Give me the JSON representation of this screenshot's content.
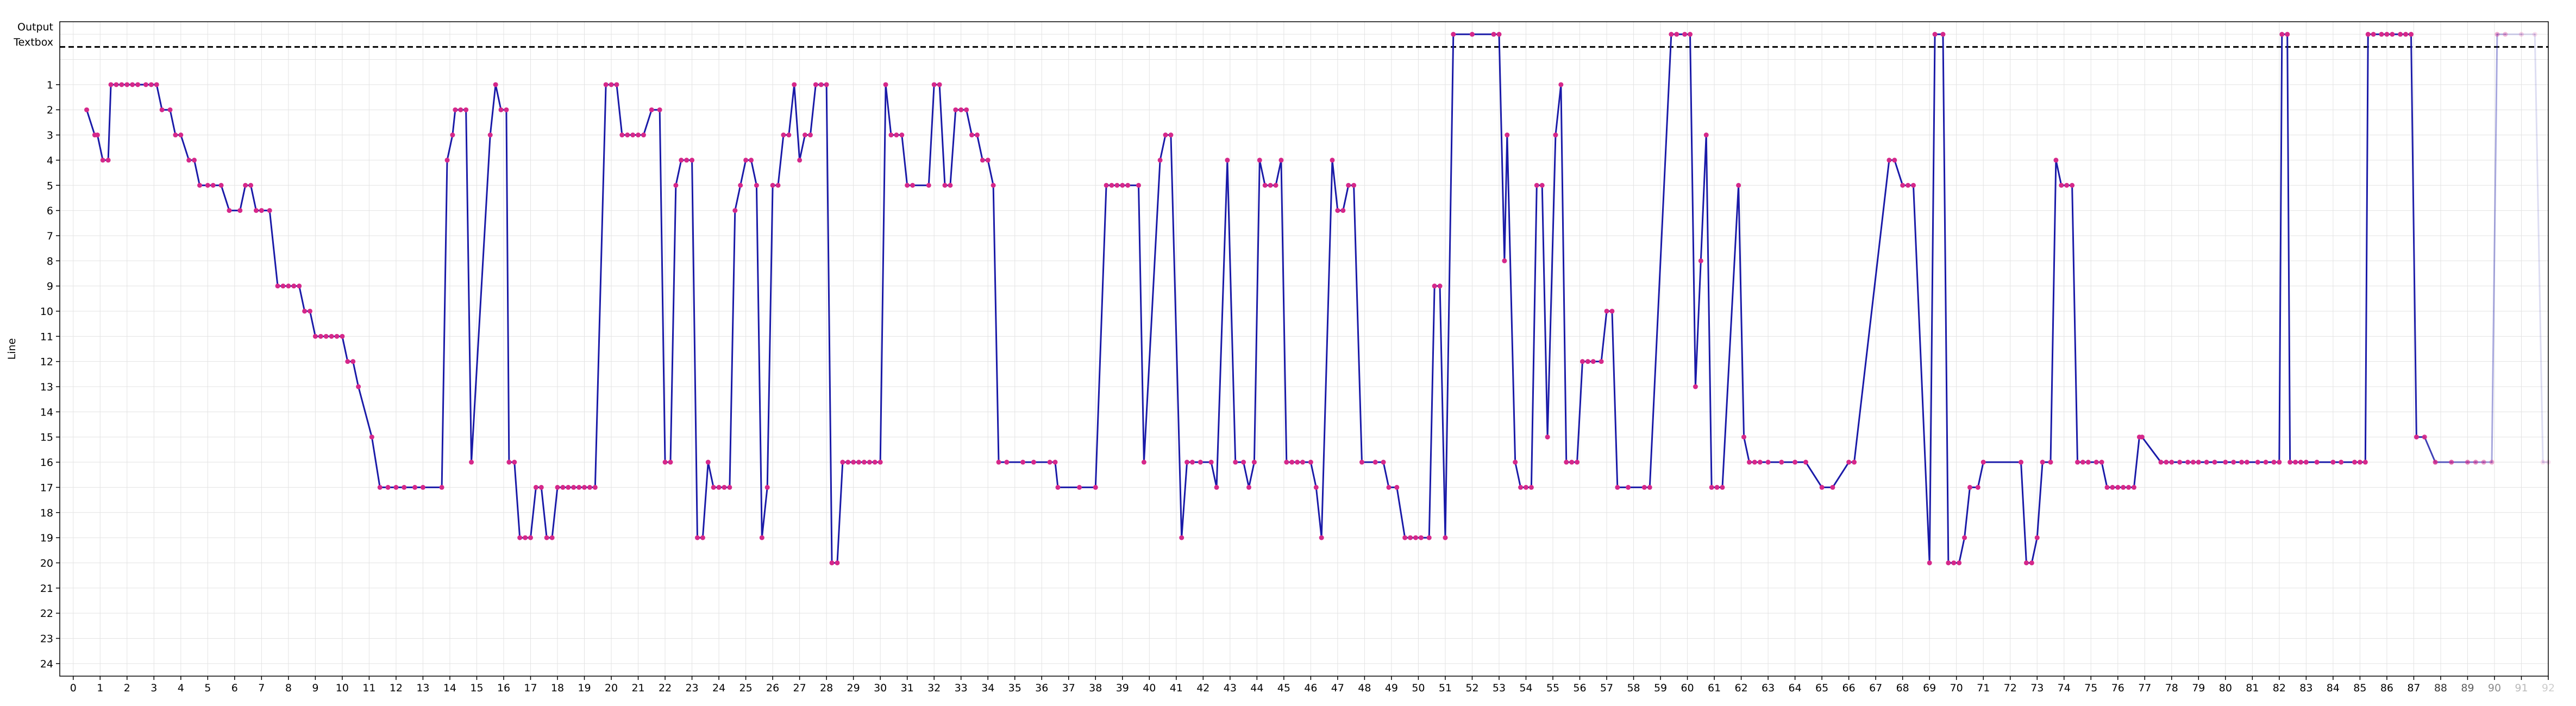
{
  "chart_data": {
    "type": "line",
    "title": "",
    "xlabel": "",
    "ylabel": "Line",
    "special_rows": [
      "Output",
      "Textbox"
    ],
    "xlim": [
      -0.5,
      92
    ],
    "ylim": [
      -1.5,
      24.5
    ],
    "x_ticks": [
      0,
      1,
      2,
      3,
      4,
      5,
      6,
      7,
      8,
      9,
      10,
      11,
      12,
      13,
      14,
      15,
      16,
      17,
      18,
      19,
      20,
      21,
      22,
      23,
      24,
      25,
      26,
      27,
      28,
      29,
      30,
      31,
      32,
      33,
      34,
      35,
      36,
      37,
      38,
      39,
      40,
      41,
      42,
      43,
      44,
      45,
      46,
      47,
      48,
      49,
      50,
      51,
      52,
      53,
      54,
      55,
      56,
      57,
      58,
      59,
      60,
      61,
      62,
      63,
      64,
      65,
      66,
      67,
      68,
      69,
      70,
      71,
      72,
      73,
      74,
      75,
      76,
      77,
      78,
      79,
      80,
      81,
      82,
      83,
      84,
      85,
      86,
      87,
      88,
      89,
      90,
      91,
      92
    ],
    "y_ticks": [
      1,
      2,
      3,
      4,
      5,
      6,
      7,
      8,
      9,
      10,
      11,
      12,
      13,
      14,
      15,
      16,
      17,
      18,
      19,
      20,
      21,
      22,
      23,
      24
    ],
    "dashed_line_y": -0.5,
    "grid": true,
    "fade_start_x": 87,
    "colors": {
      "line": "#1a1aa8",
      "marker": "#d6288a",
      "dashed": "#000000",
      "grid": "#e3e3e3"
    },
    "points": [
      [
        0.5,
        2
      ],
      [
        0.8,
        3
      ],
      [
        0.9,
        3
      ],
      [
        1.1,
        4
      ],
      [
        1.3,
        4
      ],
      [
        1.4,
        1
      ],
      [
        1.6,
        1
      ],
      [
        1.8,
        1
      ],
      [
        2.0,
        1
      ],
      [
        2.2,
        1
      ],
      [
        2.4,
        1
      ],
      [
        2.7,
        1
      ],
      [
        2.9,
        1
      ],
      [
        3.1,
        1
      ],
      [
        3.3,
        2
      ],
      [
        3.6,
        2
      ],
      [
        3.8,
        3
      ],
      [
        4.0,
        3
      ],
      [
        4.3,
        4
      ],
      [
        4.5,
        4
      ],
      [
        4.7,
        5
      ],
      [
        5.0,
        5
      ],
      [
        5.2,
        5
      ],
      [
        5.5,
        5
      ],
      [
        5.8,
        6
      ],
      [
        6.2,
        6
      ],
      [
        6.4,
        5
      ],
      [
        6.6,
        5
      ],
      [
        6.8,
        6
      ],
      [
        7.0,
        6
      ],
      [
        7.3,
        6
      ],
      [
        7.6,
        9
      ],
      [
        7.8,
        9
      ],
      [
        8.0,
        9
      ],
      [
        8.2,
        9
      ],
      [
        8.4,
        9
      ],
      [
        8.6,
        10
      ],
      [
        8.8,
        10
      ],
      [
        9.0,
        11
      ],
      [
        9.2,
        11
      ],
      [
        9.4,
        11
      ],
      [
        9.6,
        11
      ],
      [
        9.8,
        11
      ],
      [
        10.0,
        11
      ],
      [
        10.2,
        12
      ],
      [
        10.4,
        12
      ],
      [
        10.6,
        13
      ],
      [
        11.1,
        15
      ],
      [
        11.4,
        17
      ],
      [
        11.7,
        17
      ],
      [
        12.0,
        17
      ],
      [
        12.3,
        17
      ],
      [
        12.7,
        17
      ],
      [
        13.0,
        17
      ],
      [
        13.7,
        17
      ],
      [
        13.9,
        4
      ],
      [
        14.1,
        3
      ],
      [
        14.2,
        2
      ],
      [
        14.4,
        2
      ],
      [
        14.6,
        2
      ],
      [
        14.8,
        16
      ],
      [
        15.5,
        3
      ],
      [
        15.7,
        1
      ],
      [
        15.9,
        2
      ],
      [
        16.1,
        2
      ],
      [
        16.2,
        16
      ],
      [
        16.4,
        16
      ],
      [
        16.6,
        19
      ],
      [
        16.8,
        19
      ],
      [
        17.0,
        19
      ],
      [
        17.2,
        17
      ],
      [
        17.4,
        17
      ],
      [
        17.6,
        19
      ],
      [
        17.8,
        19
      ],
      [
        18.0,
        17
      ],
      [
        18.2,
        17
      ],
      [
        18.4,
        17
      ],
      [
        18.6,
        17
      ],
      [
        18.8,
        17
      ],
      [
        19.0,
        17
      ],
      [
        19.2,
        17
      ],
      [
        19.4,
        17
      ],
      [
        19.8,
        1
      ],
      [
        20.0,
        1
      ],
      [
        20.2,
        1
      ],
      [
        20.4,
        3
      ],
      [
        20.6,
        3
      ],
      [
        20.8,
        3
      ],
      [
        21.0,
        3
      ],
      [
        21.2,
        3
      ],
      [
        21.5,
        2
      ],
      [
        21.8,
        2
      ],
      [
        22.0,
        16
      ],
      [
        22.2,
        16
      ],
      [
        22.4,
        5
      ],
      [
        22.6,
        4
      ],
      [
        22.8,
        4
      ],
      [
        23.0,
        4
      ],
      [
        23.2,
        19
      ],
      [
        23.4,
        19
      ],
      [
        23.6,
        16
      ],
      [
        23.8,
        17
      ],
      [
        24.0,
        17
      ],
      [
        24.2,
        17
      ],
      [
        24.4,
        17
      ],
      [
        24.6,
        6
      ],
      [
        24.8,
        5
      ],
      [
        25.0,
        4
      ],
      [
        25.2,
        4
      ],
      [
        25.4,
        5
      ],
      [
        25.6,
        19
      ],
      [
        25.8,
        17
      ],
      [
        26.0,
        5
      ],
      [
        26.2,
        5
      ],
      [
        26.4,
        3
      ],
      [
        26.6,
        3
      ],
      [
        26.8,
        1
      ],
      [
        27.0,
        4
      ],
      [
        27.2,
        3
      ],
      [
        27.4,
        3
      ],
      [
        27.6,
        1
      ],
      [
        27.8,
        1
      ],
      [
        28.0,
        1
      ],
      [
        28.2,
        20
      ],
      [
        28.4,
        20
      ],
      [
        28.6,
        16
      ],
      [
        28.8,
        16
      ],
      [
        29.0,
        16
      ],
      [
        29.2,
        16
      ],
      [
        29.4,
        16
      ],
      [
        29.6,
        16
      ],
      [
        29.8,
        16
      ],
      [
        30.0,
        16
      ],
      [
        30.2,
        1
      ],
      [
        30.4,
        3
      ],
      [
        30.6,
        3
      ],
      [
        30.8,
        3
      ],
      [
        31.0,
        5
      ],
      [
        31.2,
        5
      ],
      [
        31.8,
        5
      ],
      [
        32.0,
        1
      ],
      [
        32.2,
        1
      ],
      [
        32.4,
        5
      ],
      [
        32.6,
        5
      ],
      [
        32.8,
        2
      ],
      [
        33.0,
        2
      ],
      [
        33.2,
        2
      ],
      [
        33.4,
        3
      ],
      [
        33.6,
        3
      ],
      [
        33.8,
        4
      ],
      [
        34.0,
        4
      ],
      [
        34.2,
        5
      ],
      [
        34.4,
        16
      ],
      [
        34.7,
        16
      ],
      [
        35.3,
        16
      ],
      [
        35.7,
        16
      ],
      [
        36.3,
        16
      ],
      [
        36.5,
        16
      ],
      [
        36.6,
        17
      ],
      [
        37.4,
        17
      ],
      [
        38.0,
        17
      ],
      [
        38.4,
        5
      ],
      [
        38.6,
        5
      ],
      [
        38.8,
        5
      ],
      [
        39.0,
        5
      ],
      [
        39.2,
        5
      ],
      [
        39.6,
        5
      ],
      [
        39.8,
        16
      ],
      [
        40.4,
        4
      ],
      [
        40.6,
        3
      ],
      [
        40.8,
        3
      ],
      [
        41.2,
        19
      ],
      [
        41.4,
        16
      ],
      [
        41.6,
        16
      ],
      [
        41.9,
        16
      ],
      [
        42.3,
        16
      ],
      [
        42.5,
        17
      ],
      [
        42.9,
        4
      ],
      [
        43.2,
        16
      ],
      [
        43.5,
        16
      ],
      [
        43.7,
        17
      ],
      [
        43.9,
        16
      ],
      [
        44.1,
        4
      ],
      [
        44.3,
        5
      ],
      [
        44.5,
        5
      ],
      [
        44.7,
        5
      ],
      [
        44.9,
        4
      ],
      [
        45.1,
        16
      ],
      [
        45.3,
        16
      ],
      [
        45.5,
        16
      ],
      [
        45.7,
        16
      ],
      [
        46.0,
        16
      ],
      [
        46.2,
        17
      ],
      [
        46.4,
        19
      ],
      [
        46.8,
        4
      ],
      [
        47.0,
        6
      ],
      [
        47.2,
        6
      ],
      [
        47.4,
        5
      ],
      [
        47.6,
        5
      ],
      [
        47.9,
        16
      ],
      [
        48.4,
        16
      ],
      [
        48.7,
        16
      ],
      [
        48.9,
        17
      ],
      [
        49.2,
        17
      ],
      [
        49.5,
        19
      ],
      [
        49.7,
        19
      ],
      [
        49.9,
        19
      ],
      [
        50.1,
        19
      ],
      [
        50.4,
        19
      ],
      [
        50.6,
        9
      ],
      [
        50.8,
        9
      ],
      [
        51.0,
        19
      ],
      [
        51.3,
        -1
      ],
      [
        52.0,
        -1
      ],
      [
        52.8,
        -1
      ],
      [
        53.0,
        -1
      ],
      [
        53.2,
        8
      ],
      [
        53.3,
        3
      ],
      [
        53.6,
        16
      ],
      [
        53.8,
        17
      ],
      [
        54.0,
        17
      ],
      [
        54.2,
        17
      ],
      [
        54.4,
        5
      ],
      [
        54.6,
        5
      ],
      [
        54.8,
        15
      ],
      [
        55.1,
        3
      ],
      [
        55.3,
        1
      ],
      [
        55.5,
        16
      ],
      [
        55.7,
        16
      ],
      [
        55.9,
        16
      ],
      [
        56.1,
        12
      ],
      [
        56.3,
        12
      ],
      [
        56.5,
        12
      ],
      [
        56.8,
        12
      ],
      [
        57.0,
        10
      ],
      [
        57.2,
        10
      ],
      [
        57.4,
        17
      ],
      [
        57.8,
        17
      ],
      [
        58.4,
        17
      ],
      [
        58.6,
        17
      ],
      [
        59.4,
        -1
      ],
      [
        59.6,
        -1
      ],
      [
        59.9,
        -1
      ],
      [
        60.1,
        -1
      ],
      [
        60.3,
        13
      ],
      [
        60.5,
        8
      ],
      [
        60.7,
        3
      ],
      [
        60.9,
        17
      ],
      [
        61.1,
        17
      ],
      [
        61.3,
        17
      ],
      [
        61.9,
        5
      ],
      [
        62.1,
        15
      ],
      [
        62.3,
        16
      ],
      [
        62.5,
        16
      ],
      [
        62.7,
        16
      ],
      [
        63.0,
        16
      ],
      [
        63.5,
        16
      ],
      [
        64.0,
        16
      ],
      [
        64.4,
        16
      ],
      [
        65.0,
        17
      ],
      [
        65.4,
        17
      ],
      [
        66.0,
        16
      ],
      [
        66.2,
        16
      ],
      [
        67.5,
        4
      ],
      [
        67.7,
        4
      ],
      [
        68.0,
        5
      ],
      [
        68.2,
        5
      ],
      [
        68.4,
        5
      ],
      [
        69.0,
        20
      ],
      [
        69.2,
        -1
      ],
      [
        69.5,
        -1
      ],
      [
        69.7,
        20
      ],
      [
        69.9,
        20
      ],
      [
        70.1,
        20
      ],
      [
        70.3,
        19
      ],
      [
        70.5,
        17
      ],
      [
        70.8,
        17
      ],
      [
        71.0,
        16
      ],
      [
        72.4,
        16
      ],
      [
        72.6,
        20
      ],
      [
        72.8,
        20
      ],
      [
        73.0,
        19
      ],
      [
        73.2,
        16
      ],
      [
        73.5,
        16
      ],
      [
        73.7,
        4
      ],
      [
        73.9,
        5
      ],
      [
        74.1,
        5
      ],
      [
        74.3,
        5
      ],
      [
        74.5,
        16
      ],
      [
        74.7,
        16
      ],
      [
        74.9,
        16
      ],
      [
        75.2,
        16
      ],
      [
        75.4,
        16
      ],
      [
        75.6,
        17
      ],
      [
        75.8,
        17
      ],
      [
        76.0,
        17
      ],
      [
        76.2,
        17
      ],
      [
        76.4,
        17
      ],
      [
        76.6,
        17
      ],
      [
        76.8,
        15
      ],
      [
        76.9,
        15
      ],
      [
        77.6,
        16
      ],
      [
        77.8,
        16
      ],
      [
        78.0,
        16
      ],
      [
        78.3,
        16
      ],
      [
        78.6,
        16
      ],
      [
        78.8,
        16
      ],
      [
        79.0,
        16
      ],
      [
        79.3,
        16
      ],
      [
        79.6,
        16
      ],
      [
        80.0,
        16
      ],
      [
        80.3,
        16
      ],
      [
        80.6,
        16
      ],
      [
        80.8,
        16
      ],
      [
        81.2,
        16
      ],
      [
        81.5,
        16
      ],
      [
        81.8,
        16
      ],
      [
        82.0,
        16
      ],
      [
        82.1,
        -1
      ],
      [
        82.3,
        -1
      ],
      [
        82.4,
        16
      ],
      [
        82.6,
        16
      ],
      [
        82.8,
        16
      ],
      [
        83.0,
        16
      ],
      [
        83.4,
        16
      ],
      [
        84.0,
        16
      ],
      [
        84.3,
        16
      ],
      [
        84.8,
        16
      ],
      [
        85.0,
        16
      ],
      [
        85.2,
        16
      ],
      [
        85.3,
        -1
      ],
      [
        85.5,
        -1
      ],
      [
        85.8,
        -1
      ],
      [
        86.0,
        -1
      ],
      [
        86.2,
        -1
      ],
      [
        86.5,
        -1
      ],
      [
        86.7,
        -1
      ],
      [
        86.9,
        -1
      ],
      [
        87.1,
        15
      ],
      [
        87.4,
        15
      ],
      [
        87.8,
        16
      ],
      [
        88.4,
        16
      ],
      [
        89.0,
        16
      ],
      [
        89.3,
        16
      ],
      [
        89.6,
        16
      ],
      [
        89.9,
        16
      ],
      [
        90.1,
        -1
      ],
      [
        90.4,
        -1
      ],
      [
        91.0,
        -1
      ],
      [
        91.5,
        -1
      ],
      [
        91.8,
        16
      ],
      [
        92.0,
        16
      ]
    ]
  }
}
